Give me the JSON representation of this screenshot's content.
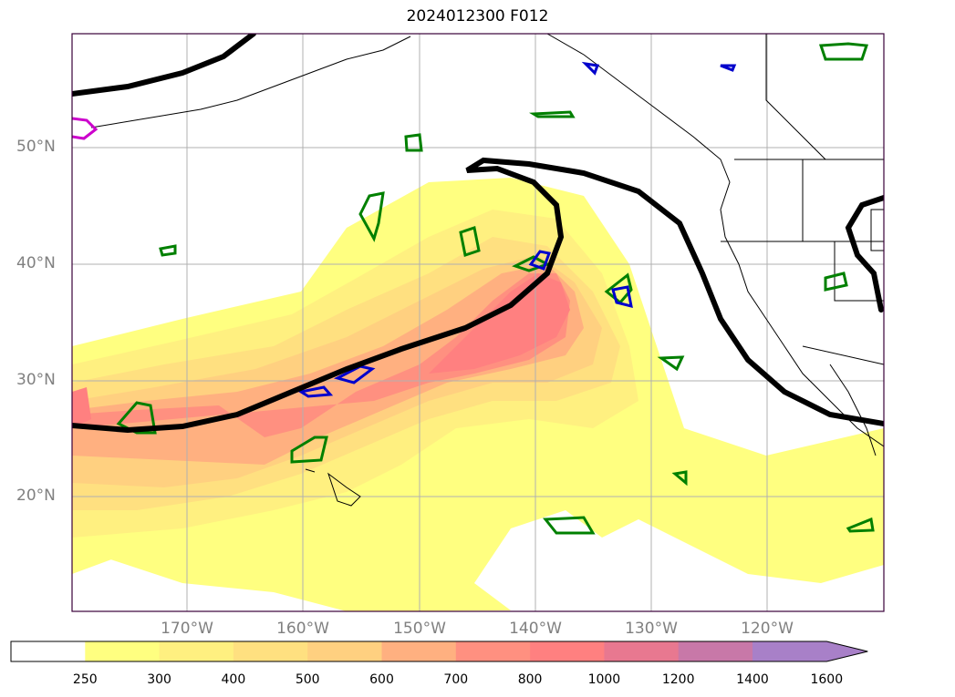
{
  "title": "2024012300 F012",
  "lat_labels": [
    {
      "text": "50°N",
      "lat": 50
    },
    {
      "text": "40°N",
      "lat": 40
    },
    {
      "text": "30°N",
      "lat": 30
    },
    {
      "text": "20°N",
      "lat": 20
    }
  ],
  "lon_labels": [
    {
      "text": "170°W",
      "lon": -170
    },
    {
      "text": "160°W",
      "lon": -160
    },
    {
      "text": "150°W",
      "lon": -150
    },
    {
      "text": "140°W",
      "lon": -140
    },
    {
      "text": "130°W",
      "lon": -130
    },
    {
      "text": "120°W",
      "lon": -120
    }
  ],
  "colorbar": {
    "levels": [
      "250",
      "300",
      "400",
      "500",
      "600",
      "700",
      "800",
      "1000",
      "1200",
      "1400",
      "1600"
    ],
    "colors": [
      "#ffff80",
      "#fff080",
      "#ffe080",
      "#ffd080",
      "#ffb080",
      "#ff9080",
      "#ff8080",
      "#e87890",
      "#c878a8",
      "#a880c8"
    ],
    "extend": "max"
  },
  "colors": {
    "jet_contour": "#000000",
    "green_contour": "#008000",
    "blue_contour": "#0000cc",
    "magenta_contour": "#cc00cc",
    "grid": "#b0b0b0"
  }
}
